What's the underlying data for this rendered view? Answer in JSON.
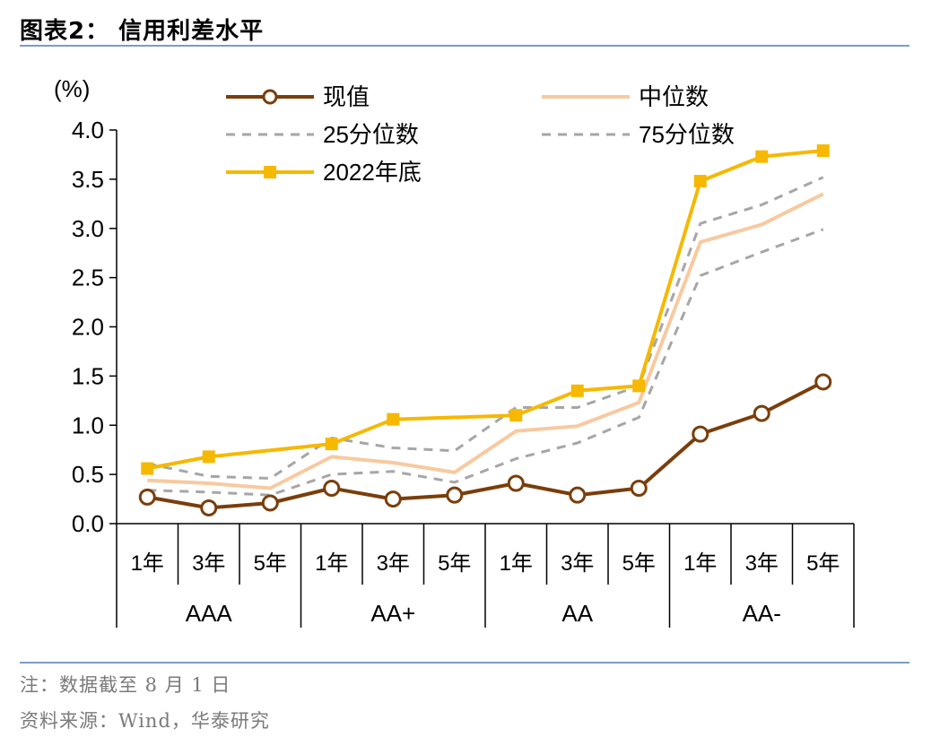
{
  "figure": {
    "title": "图表2：  信用利差水平",
    "note": "注：数据截至 8 月 1 日",
    "source": "资料来源：Wind，华泰研究"
  },
  "chart_data": {
    "type": "line",
    "ylabel": "(%)",
    "ylim": [
      0,
      4
    ],
    "yticks": [
      "0.0",
      "0.5",
      "1.0",
      "1.5",
      "2.0",
      "2.5",
      "3.0",
      "3.5",
      "4.0"
    ],
    "categories": [
      "1年",
      "3年",
      "5年",
      "1年",
      "3年",
      "5年",
      "1年",
      "3年",
      "5年",
      "1年",
      "3年",
      "5年"
    ],
    "groups": [
      "AAA",
      "AA+",
      "AA",
      "AA-"
    ],
    "legend_position": "top",
    "grid": false,
    "series": [
      {
        "name": "现值",
        "color": "#7a3e0b",
        "style": "solid-open-circle",
        "values": [
          0.27,
          0.16,
          0.21,
          0.36,
          0.25,
          0.29,
          0.41,
          0.29,
          0.36,
          0.91,
          1.12,
          1.44
        ]
      },
      {
        "name": "中位数",
        "color": "#f8c9a0",
        "style": "solid",
        "values": [
          0.44,
          0.41,
          0.36,
          0.68,
          0.62,
          0.52,
          0.94,
          0.99,
          1.23,
          2.86,
          3.04,
          3.35
        ]
      },
      {
        "name": "25分位数",
        "color": "#a6a6a6",
        "style": "dashed",
        "values": [
          0.34,
          0.32,
          0.29,
          0.5,
          0.53,
          0.42,
          0.66,
          0.82,
          1.08,
          2.52,
          2.76,
          2.99
        ]
      },
      {
        "name": "75分位数",
        "color": "#a6a6a6",
        "style": "dashed",
        "values": [
          0.61,
          0.48,
          0.46,
          0.87,
          0.77,
          0.74,
          1.18,
          1.18,
          1.4,
          3.05,
          3.24,
          3.52
        ]
      },
      {
        "name": "2022年底",
        "color": "#f6b800",
        "style": "solid-square",
        "values": [
          0.56,
          0.68,
          null,
          0.81,
          1.06,
          null,
          1.1,
          1.35,
          1.4,
          3.48,
          3.73,
          3.79
        ]
      }
    ]
  }
}
